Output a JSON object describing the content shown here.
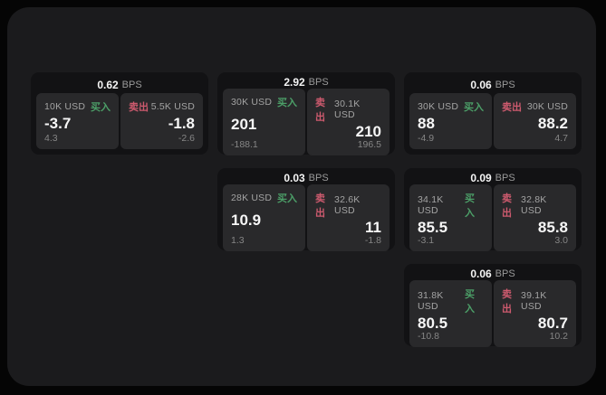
{
  "labels": {
    "bps_unit": "BPS",
    "buy": "买入",
    "sell": "卖出"
  },
  "colors": {
    "buy": "#4c9f68",
    "sell": "#cd5a6e",
    "app_background": "#1b1b1d",
    "card_background": "#121214",
    "panel_background": "#29292b"
  },
  "cards": [
    {
      "col": 1,
      "row": 1,
      "bps": "0.62",
      "buy": {
        "amount": "10K USD",
        "price": "-3.7",
        "delta": "4.3"
      },
      "sell": {
        "amount": "5.5K USD",
        "price": "-1.8",
        "delta": "-2.6"
      }
    },
    {
      "col": 2,
      "row": 1,
      "bps": "2.92",
      "buy": {
        "amount": "30K USD",
        "price": "201",
        "delta": "-188.1"
      },
      "sell": {
        "amount": "30.1K USD",
        "price": "210",
        "delta": "196.5"
      }
    },
    {
      "col": 3,
      "row": 1,
      "bps": "0.06",
      "buy": {
        "amount": "30K USD",
        "price": "88",
        "delta": "-4.9"
      },
      "sell": {
        "amount": "30K USD",
        "price": "88.2",
        "delta": "4.7"
      }
    },
    {
      "col": 2,
      "row": 2,
      "bps": "0.03",
      "buy": {
        "amount": "28K USD",
        "price": "10.9",
        "delta": "1.3"
      },
      "sell": {
        "amount": "32.6K USD",
        "price": "11",
        "delta": "-1.8"
      }
    },
    {
      "col": 3,
      "row": 2,
      "bps": "0.09",
      "buy": {
        "amount": "34.1K USD",
        "price": "85.5",
        "delta": "-3.1"
      },
      "sell": {
        "amount": "32.8K USD",
        "price": "85.8",
        "delta": "3.0"
      }
    },
    {
      "col": 3,
      "row": 3,
      "bps": "0.06",
      "buy": {
        "amount": "31.8K USD",
        "price": "80.5",
        "delta": "-10.8"
      },
      "sell": {
        "amount": "39.1K USD",
        "price": "80.7",
        "delta": "10.2"
      }
    }
  ]
}
